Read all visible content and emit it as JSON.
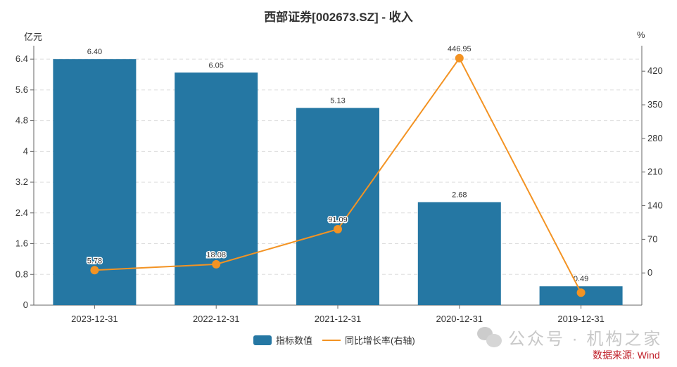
{
  "chart_data": {
    "type": "bar+line",
    "title": "西部证券[002673.SZ] - 收入",
    "categories": [
      "2023-12-31",
      "2022-12-31",
      "2021-12-31",
      "2020-12-31",
      "2019-12-31"
    ],
    "left_axis": {
      "unit": "亿元",
      "ticks": [
        "0",
        "0.8",
        "1.6",
        "2.4",
        "3.2",
        "4",
        "4.8",
        "5.6",
        "6.4"
      ],
      "range": [
        0,
        6.75
      ]
    },
    "right_axis": {
      "unit": "%",
      "ticks": [
        "0",
        "70",
        "140",
        "210",
        "280",
        "350",
        "420"
      ],
      "range": [
        -67,
        473
      ]
    },
    "grid": true,
    "legend_placement": "bottom",
    "series": [
      {
        "name": "指标数值",
        "type": "bar",
        "axis": "left",
        "color": "#2577a3",
        "values": [
          6.4,
          6.05,
          5.13,
          2.68,
          0.49
        ],
        "labels": [
          "6.40",
          "6.05",
          "5.13",
          "2.68",
          "0.49"
        ]
      },
      {
        "name": "同比增长率(右轴)",
        "type": "line",
        "axis": "right",
        "color": "#f39323",
        "values": [
          5.78,
          18.08,
          91.09,
          446.95,
          -41
        ],
        "labels": [
          "5.78",
          "18.08",
          "91.09",
          "446.95",
          ""
        ]
      }
    ]
  },
  "watermark": "公众号 · 机构之家",
  "source": "数据来源: Wind"
}
